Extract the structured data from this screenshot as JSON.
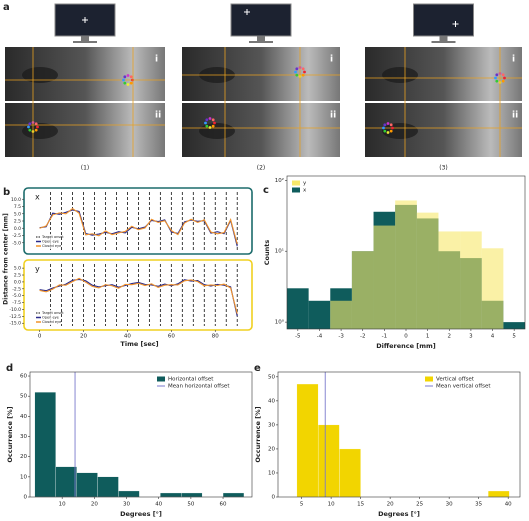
{
  "panel_a": {
    "label": "a",
    "row_labels": [
      "i",
      "ii"
    ],
    "column_labels": [
      "(1)",
      "(2)",
      "(3)"
    ]
  },
  "chart_data": [
    {
      "type": "line",
      "panel": "b",
      "label": "x",
      "y_label": "Distance from center [mm]",
      "x": [
        0,
        3,
        6,
        9,
        12,
        15,
        18,
        21,
        24,
        27,
        30,
        33,
        36,
        39,
        42,
        45,
        48,
        51,
        54,
        57,
        60,
        63,
        66,
        69,
        72,
        75,
        78,
        81,
        84,
        87,
        90
      ],
      "xlim": [
        -3,
        94
      ],
      "ylim": [
        -7.5,
        12.5
      ],
      "yticks": [
        {
          "value": 10,
          "label": "10.0"
        },
        {
          "value": 7.5,
          "label": "7.5"
        },
        {
          "value": 5,
          "label": "5.0"
        },
        {
          "value": 2.5,
          "label": "2.5"
        },
        {
          "value": 0,
          "label": "0.0"
        },
        {
          "value": -2.5,
          "label": "-2.5"
        },
        {
          "value": -5,
          "label": "-5.0"
        }
      ],
      "onsets": [
        5,
        10,
        15,
        20,
        25,
        30,
        35,
        40,
        45,
        50,
        55,
        60,
        65,
        70,
        75,
        80,
        85,
        90
      ],
      "onset_name": "Target onset",
      "series": [
        {
          "name": "Open eye",
          "color": "#2a2a8a",
          "values": [
            0.2,
            0.5,
            5.2,
            4.8,
            5.5,
            6.3,
            5.8,
            -1.8,
            -2.4,
            -2.0,
            -1.4,
            -1.9,
            -1.2,
            -1.6,
            0.3,
            -0.2,
            0.4,
            2.7,
            2.3,
            2.9,
            -1.3,
            -1.8,
            2.2,
            2.8,
            2.4,
            2.6,
            -1.7,
            -1.2,
            -1.9,
            2.7,
            -6.2
          ]
        },
        {
          "name": "Closed eye",
          "color": "#f0922b",
          "values": [
            0.0,
            0.8,
            4.6,
            5.3,
            5.0,
            6.8,
            5.2,
            -2.3,
            -1.9,
            -2.6,
            -0.9,
            -2.2,
            -1.6,
            -1.1,
            0.7,
            -0.5,
            0.1,
            3.1,
            2.0,
            2.6,
            -0.8,
            -2.2,
            1.8,
            3.1,
            2.0,
            2.9,
            -1.3,
            -1.9,
            -1.5,
            3.0,
            -5.4
          ]
        }
      ]
    },
    {
      "type": "line",
      "label": "y",
      "x_label": "Time [sec]",
      "x": [
        0,
        3,
        6,
        9,
        12,
        15,
        18,
        21,
        24,
        27,
        30,
        33,
        36,
        39,
        42,
        45,
        48,
        51,
        54,
        57,
        60,
        63,
        66,
        69,
        72,
        75,
        78,
        81,
        84,
        87,
        90
      ],
      "xlim": [
        -3,
        94
      ],
      "xticks": [
        0,
        20,
        40,
        60,
        80
      ],
      "ylim": [
        -16,
        6.5
      ],
      "yticks": [
        {
          "value": 5,
          "label": "5.0"
        },
        {
          "value": 2.5,
          "label": "2.5"
        },
        {
          "value": 0,
          "label": "0.0"
        },
        {
          "value": -2.5,
          "label": "-2.5"
        },
        {
          "value": -5,
          "label": "-5.0"
        },
        {
          "value": -7.5,
          "label": "-7.5"
        },
        {
          "value": -10,
          "label": "-10.0"
        },
        {
          "value": -12.5,
          "label": "-12.5"
        },
        {
          "value": -15,
          "label": "-15.0"
        }
      ],
      "onsets": [
        5,
        10,
        15,
        20,
        25,
        30,
        35,
        40,
        45,
        50,
        55,
        60,
        65,
        70,
        75,
        80,
        85,
        90
      ],
      "onset_name": "Target onset",
      "series": [
        {
          "name": "Open eye",
          "color": "#2a2a8a",
          "values": [
            -2.8,
            -3.2,
            -2.2,
            -1.5,
            -0.8,
            0.6,
            0.9,
            0.4,
            -1.2,
            -1.8,
            -1.4,
            -1.0,
            -1.9,
            -1.3,
            -0.6,
            -0.2,
            -0.9,
            -1.1,
            -1.6,
            -0.8,
            -1.4,
            -0.7,
            0.8,
            0.3,
            0.5,
            -1.0,
            -1.5,
            -0.9,
            -1.2,
            -1.8,
            -12.4
          ]
        },
        {
          "name": "Closed eye",
          "color": "#f0922b",
          "values": [
            -3.1,
            -3.6,
            -2.6,
            -1.1,
            -1.2,
            0.1,
            1.3,
            -0.1,
            -1.6,
            -2.2,
            -1.0,
            -1.4,
            -2.3,
            -0.9,
            -1.0,
            -0.5,
            -1.3,
            -0.7,
            -2.0,
            -1.2,
            -1.0,
            -1.1,
            0.4,
            0.7,
            0.1,
            -1.4,
            -1.1,
            -1.3,
            -0.8,
            -2.2,
            -11.5
          ]
        }
      ]
    },
    {
      "type": "histogram",
      "panel": "c",
      "log_y": true,
      "legend": "upper left",
      "bins": [
        -5.5,
        -4.5,
        -3.5,
        -2.5,
        -1.5,
        -0.5,
        0.5,
        1.5,
        2.5,
        3.5,
        4.5,
        5.5
      ],
      "series": [
        {
          "name": "y",
          "color": "#f7e86a",
          "values": [
            0,
            0,
            2,
            10,
            23,
            52,
            35,
            19,
            19,
            11,
            0
          ]
        },
        {
          "name": "x",
          "color": "#0f5c5c",
          "values": [
            3,
            2,
            3,
            10,
            36,
            45,
            29,
            10,
            8,
            2,
            1
          ]
        }
      ],
      "xlim": [
        -5.5,
        5.5
      ],
      "xticks": [
        -5,
        -4,
        -3,
        -2,
        -1,
        0,
        1,
        2,
        3,
        4,
        5
      ],
      "ylim": [
        0.8,
        115
      ],
      "yticks": [
        {
          "value": 1,
          "label": "10⁰"
        },
        {
          "value": 10,
          "label": "10¹"
        },
        {
          "value": 100,
          "label": "10²"
        }
      ],
      "x_label": "Difference [mm]",
      "y_label": "Counts"
    },
    {
      "type": "histogram",
      "panel": "d",
      "legend": "upper right",
      "bins": [
        1.5,
        8,
        14.5,
        21,
        27.5,
        34,
        40.5,
        47,
        53.5,
        60,
        66.5
      ],
      "series": [
        {
          "name": "Horizontal offset",
          "color": "#0f5c5c",
          "values": [
            52,
            15,
            12,
            10,
            3,
            0,
            2,
            2,
            0,
            2
          ]
        }
      ],
      "mean": 14,
      "mean_name": "Mean horizontal offset",
      "mean_color": "#7a7acc",
      "xlim": [
        0,
        69
      ],
      "xticks": [
        10,
        20,
        30,
        40,
        50,
        60
      ],
      "ylim": [
        0,
        62
      ],
      "yticks": [
        0,
        10,
        20,
        30,
        40,
        50,
        60
      ],
      "x_label": "Degrees [°]",
      "y_label": "Occurrence [%]"
    },
    {
      "type": "histogram",
      "panel": "e",
      "legend": "upper right",
      "bins": [
        4.2,
        7.8,
        11.4,
        15,
        18.6,
        22.2,
        25.8,
        29.4,
        33,
        36.6,
        40.2
      ],
      "series": [
        {
          "name": "Vertical offset",
          "color": "#f2d500",
          "values": [
            47,
            30,
            20,
            0,
            0,
            0,
            0,
            0,
            0,
            2.5
          ]
        }
      ],
      "mean": 9,
      "mean_name": "Mean vertical offset",
      "mean_color": "#7a7acc",
      "xlim": [
        1,
        42
      ],
      "xticks": [
        5,
        10,
        15,
        20,
        25,
        30,
        35,
        40
      ],
      "ylim": [
        0,
        52
      ],
      "yticks": [
        0,
        10,
        20,
        30,
        40,
        50
      ],
      "x_label": "Degrees [°]",
      "y_label": "Occurrence [%]"
    }
  ]
}
